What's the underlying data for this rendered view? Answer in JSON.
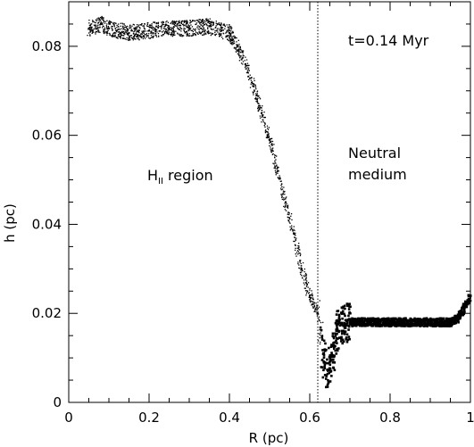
{
  "chart_data": {
    "type": "scatter",
    "title": "",
    "xlabel": "R (pc)",
    "ylabel": "h (pc)",
    "xlim": [
      0,
      1
    ],
    "ylim": [
      0,
      0.09
    ],
    "x_ticks": [
      0,
      0.2,
      0.4,
      0.6,
      0.8,
      1
    ],
    "x_tick_labels": [
      "0",
      "0.2",
      "0.4",
      "0.6",
      "0.8",
      "1"
    ],
    "y_ticks": [
      0,
      0.02,
      0.04,
      0.06,
      0.08
    ],
    "y_tick_labels": [
      "0",
      "0.02",
      "0.04",
      "0.06",
      "0.08"
    ],
    "grid": false,
    "ionization_front": {
      "x": 0.62,
      "style": "dotted"
    },
    "annotations": {
      "time": "t=0.14 Myr",
      "hii_main": "H",
      "hii_sub": "II",
      "hii_rest": " region",
      "neutral_line1": "Neutral",
      "neutral_line2": "medium"
    },
    "series": [
      {
        "values": [
          {
            "x": 0.05,
            "y": 0.084
          },
          {
            "x": 0.08,
            "y": 0.085
          },
          {
            "x": 0.1,
            "y": 0.084
          },
          {
            "x": 0.15,
            "y": 0.083
          },
          {
            "x": 0.2,
            "y": 0.0835
          },
          {
            "x": 0.25,
            "y": 0.084
          },
          {
            "x": 0.3,
            "y": 0.084
          },
          {
            "x": 0.35,
            "y": 0.0845
          },
          {
            "x": 0.38,
            "y": 0.0835
          },
          {
            "x": 0.4,
            "y": 0.083
          },
          {
            "x": 0.42,
            "y": 0.08
          },
          {
            "x": 0.44,
            "y": 0.076
          },
          {
            "x": 0.46,
            "y": 0.071
          },
          {
            "x": 0.48,
            "y": 0.065
          },
          {
            "x": 0.5,
            "y": 0.059
          },
          {
            "x": 0.52,
            "y": 0.052
          },
          {
            "x": 0.54,
            "y": 0.045
          },
          {
            "x": 0.56,
            "y": 0.038
          },
          {
            "x": 0.58,
            "y": 0.03
          },
          {
            "x": 0.6,
            "y": 0.024
          },
          {
            "x": 0.62,
            "y": 0.02
          },
          {
            "x": 0.635,
            "y": 0.01
          },
          {
            "x": 0.645,
            "y": 0.007
          },
          {
            "x": 0.66,
            "y": 0.012
          },
          {
            "x": 0.67,
            "y": 0.016
          },
          {
            "x": 0.68,
            "y": 0.0175
          },
          {
            "x": 0.7,
            "y": 0.018
          },
          {
            "x": 0.8,
            "y": 0.018
          },
          {
            "x": 0.9,
            "y": 0.018
          },
          {
            "x": 0.95,
            "y": 0.018
          },
          {
            "x": 0.97,
            "y": 0.019
          },
          {
            "x": 1.0,
            "y": 0.0235
          }
        ]
      }
    ]
  },
  "colors": {
    "marker": "#000000",
    "background": "#ffffff",
    "axes": "#000000"
  }
}
